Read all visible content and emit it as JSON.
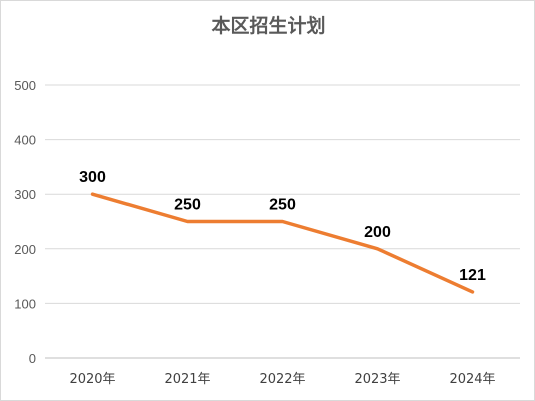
{
  "chart_data": {
    "type": "line",
    "title": "本区招生计划",
    "categories": [
      "2020年",
      "2021年",
      "2022年",
      "2023年",
      "2024年"
    ],
    "series": [
      {
        "values": [
          300,
          250,
          250,
          200,
          121
        ],
        "color": "#ed7d31",
        "data_labels": [
          "300",
          "250",
          "250",
          "200",
          "121"
        ]
      }
    ],
    "ylim": [
      0,
      500
    ],
    "yticks": [
      "0",
      "100",
      "200",
      "300",
      "400",
      "500"
    ],
    "grid": true,
    "legend": "none"
  }
}
